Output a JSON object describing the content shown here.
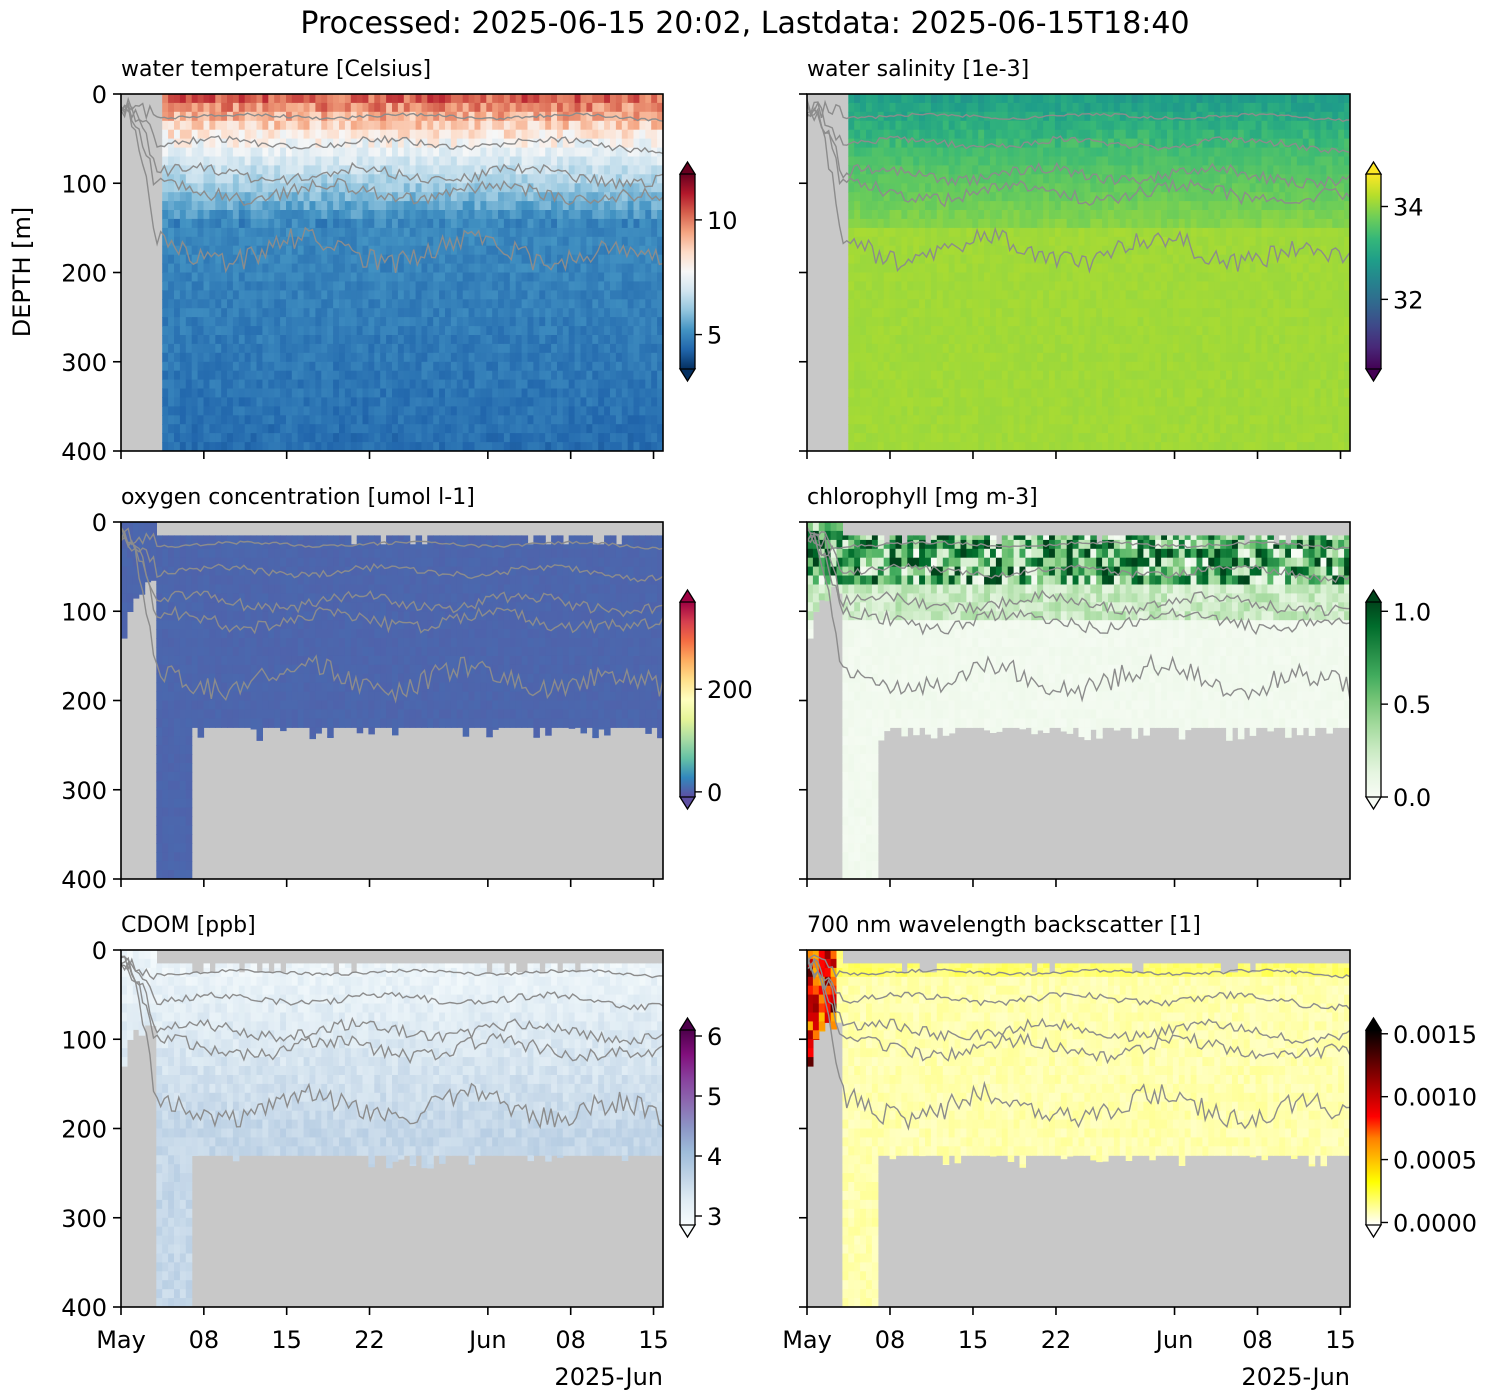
{
  "figure": {
    "suptitle": "Processed: 2025-06-15 20:02, Lastdata: 2025-06-15T18:40",
    "ylabel": "DEPTH [m]",
    "xaxis": {
      "ticks": [
        "May",
        "08",
        "15",
        "22",
        "Jun",
        "08",
        "15"
      ],
      "tick_days": [
        0,
        7,
        14,
        21,
        31,
        38,
        45
      ],
      "offset_label": "2025-Jun",
      "xlim_days": [
        0,
        45.8
      ]
    },
    "yaxis": {
      "ticks": [
        "0",
        "100",
        "200",
        "300",
        "400"
      ],
      "ylim": [
        400,
        0
      ]
    }
  },
  "chart_data": [
    {
      "type": "heatmap",
      "panel": "water-temperature",
      "title": "water temperature [Celsius]",
      "colorbar": {
        "colormap": "RdBu_r",
        "range": [
          3.5,
          12
        ],
        "ticks": [
          "5",
          "10"
        ],
        "tick_values": [
          5,
          10
        ],
        "extend": "both"
      },
      "nodata_color": "#c8c8c8",
      "data_start_day": 3.0,
      "trend": "warm (>10) near surface, 6-8 around 50-100 m, cold (~4.5) below 150 m",
      "isopycnal_depths_m": [
        25,
        55,
        90,
        110,
        175
      ]
    },
    {
      "type": "heatmap",
      "panel": "water-salinity",
      "title": "water salinity [1e-3]",
      "colorbar": {
        "colormap": "viridis",
        "range": [
          30.5,
          34.7
        ],
        "ticks": [
          "32",
          "34"
        ],
        "tick_values": [
          32,
          34
        ],
        "extend": "both"
      },
      "nodata_color": "#c8c8c8",
      "data_start_day": 3.0,
      "trend": "fresher (~32.5) near surface, ~34 below 150 m",
      "isopycnal_depths_m": [
        25,
        55,
        90,
        110,
        175
      ]
    },
    {
      "type": "heatmap",
      "panel": "oxygen-concentration",
      "title": "oxygen concentration [umol l-1]",
      "colorbar": {
        "colormap": "Spectral_r",
        "range": [
          -10,
          370
        ],
        "ticks": [
          "0",
          "200"
        ],
        "tick_values": [
          0,
          200
        ],
        "extend": "both"
      },
      "nodata_color": "#c8c8c8",
      "data_top_m": 15,
      "data_bottom_m": 230,
      "trend": "uniform low values across the profile",
      "isopycnal_depths_m": [
        25,
        55,
        90,
        110,
        175
      ]
    },
    {
      "type": "heatmap",
      "panel": "chlorophyll",
      "title": "chlorophyll [mg m-3]",
      "colorbar": {
        "colormap": "Greens",
        "range": [
          0,
          1.05
        ],
        "ticks": [
          "0.0",
          "0.5",
          "1.0"
        ],
        "tick_values": [
          0,
          0.5,
          1.0
        ],
        "extend": "both"
      },
      "nodata_color": "#c8c8c8",
      "data_top_m": 15,
      "data_bottom_m": 230,
      "trend": "high (>1) in upper 15-70 m, near 0 below 100 m",
      "isopycnal_depths_m": [
        25,
        55,
        90,
        110,
        175
      ]
    },
    {
      "type": "heatmap",
      "panel": "cdom",
      "title": "CDOM [ppb]",
      "colorbar": {
        "colormap": "BuPu",
        "range": [
          2.85,
          6.1
        ],
        "ticks": [
          "3",
          "4",
          "5",
          "6"
        ],
        "tick_values": [
          3,
          4,
          5,
          6
        ],
        "extend": "both"
      },
      "nodata_color": "#c8c8c8",
      "data_top_m": 15,
      "data_bottom_m": 230,
      "trend": "~3.0 near surface increasing to ~3.6 at 150-230 m",
      "isopycnal_depths_m": [
        25,
        55,
        90,
        110,
        175
      ]
    },
    {
      "type": "heatmap",
      "panel": "backscatter-700nm",
      "title": "700 nm wavelength backscatter [1]",
      "colorbar": {
        "colormap": "hot_r",
        "range": [
          -2e-05,
          0.00153
        ],
        "ticks": [
          "0.0000",
          "0.0005",
          "0.0010",
          "0.0015"
        ],
        "tick_values": [
          0,
          0.0005,
          0.001,
          0.0015
        ],
        "extend": "both"
      },
      "nodata_color": "#c8c8c8",
      "data_top_m": 15,
      "data_bottom_m": 230,
      "trend": "low (~0.0001) everywhere, higher in upper 30 m, spike >0.001 in early May",
      "isopycnal_depths_m": [
        25,
        55,
        90,
        110,
        175
      ]
    }
  ]
}
